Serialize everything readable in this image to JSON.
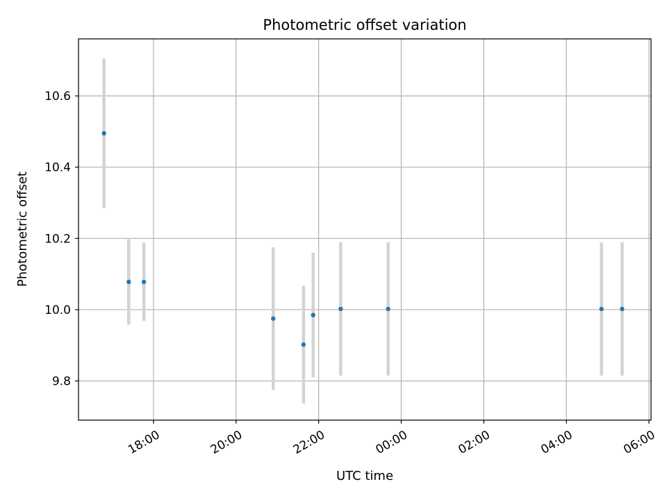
{
  "chart_data": {
    "type": "scatter",
    "title": "Photometric offset variation",
    "xlabel": "UTC time",
    "ylabel": "Photometric offset",
    "x_ticks": [
      "18:00",
      "20:00",
      "22:00",
      "00:00",
      "02:00",
      "04:00",
      "06:00"
    ],
    "y_ticks": [
      "9.8",
      "10.0",
      "10.2",
      "10.4",
      "10.6"
    ],
    "xlim": [
      "16:11",
      "06:03"
    ],
    "ylim": [
      9.69,
      10.76
    ],
    "grid": true,
    "legend": "none",
    "series": [
      {
        "points": [
          {
            "x": "16:48",
            "y": 10.495,
            "err": 0.21
          },
          {
            "x": "17:24",
            "y": 10.078,
            "err": 0.12
          },
          {
            "x": "17:46",
            "y": 10.078,
            "err": 0.11
          },
          {
            "x": "20:54",
            "y": 9.975,
            "err": 0.2
          },
          {
            "x": "21:38",
            "y": 9.902,
            "err": 0.165
          },
          {
            "x": "21:52",
            "y": 9.985,
            "err": 0.175
          },
          {
            "x": "22:32",
            "y": 10.002,
            "err": 0.187
          },
          {
            "x": "23:41",
            "y": 10.002,
            "err": 0.187
          },
          {
            "x": "04:51",
            "y": 10.002,
            "err": 0.187
          },
          {
            "x": "05:21",
            "y": 10.002,
            "err": 0.187
          }
        ]
      }
    ],
    "colors": {
      "marker": "#1f77b4",
      "errorbar": "#d3d3d3",
      "grid": "#b0b0b0"
    }
  }
}
